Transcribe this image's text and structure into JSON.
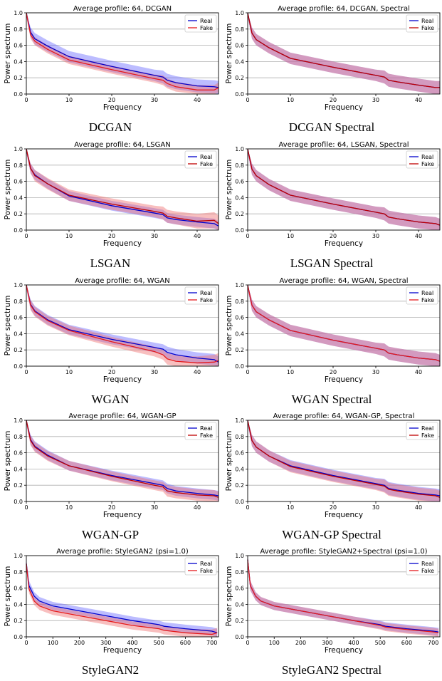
{
  "chart_data": [
    {
      "type": "line",
      "title": "Average profile: 64, DCGAN",
      "caption": "DCGAN",
      "xlabel": "Frequency",
      "ylabel": "Power spectrum",
      "xlim": [
        0,
        45
      ],
      "ylim": [
        0,
        1.0
      ],
      "xticks": [
        "0",
        "10",
        "20",
        "30",
        "40"
      ],
      "yticks": [
        "0.0",
        "0.2",
        "0.4",
        "0.6",
        "0.8",
        "1.0"
      ],
      "grid": "horizontal",
      "legend": "top-right",
      "fake_color": "#e41a1c",
      "x": [
        0,
        1,
        2,
        5,
        10,
        20,
        30,
        32,
        33,
        35,
        40,
        44,
        45
      ],
      "series": [
        {
          "name": "Real",
          "values": [
            1.0,
            0.76,
            0.68,
            0.59,
            0.46,
            0.34,
            0.23,
            0.21,
            0.17,
            0.14,
            0.1,
            0.09,
            0.08
          ],
          "band": [
            0.05,
            0.06,
            0.07,
            0.07,
            0.07,
            0.07,
            0.07,
            0.08,
            0.08,
            0.08,
            0.08,
            0.08
          ]
        },
        {
          "name": "Fake",
          "values": [
            1.0,
            0.73,
            0.65,
            0.55,
            0.42,
            0.3,
            0.19,
            0.17,
            0.13,
            0.09,
            0.05,
            0.05,
            0.08
          ],
          "band": [
            0.05,
            0.05,
            0.05,
            0.05,
            0.05,
            0.05,
            0.05,
            0.06,
            0.06,
            0.06,
            0.06,
            0.06
          ]
        }
      ]
    },
    {
      "type": "line",
      "title": "Average profile: 64, DCGAN, Spectral",
      "caption": "DCGAN Spectral",
      "xlabel": "Frequency",
      "ylabel": "Power spectrum",
      "xlim": [
        0,
        45
      ],
      "ylim": [
        0,
        1.0
      ],
      "xticks": [
        "0",
        "10",
        "20",
        "30",
        "40"
      ],
      "yticks": [
        "0.0",
        "0.2",
        "0.4",
        "0.6",
        "0.8",
        "1.0"
      ],
      "grid": "horizontal",
      "legend": "top-right",
      "fake_color": "#c00000",
      "x": [
        0,
        1,
        2,
        5,
        10,
        20,
        30,
        32,
        33,
        35,
        40,
        44,
        45
      ],
      "series": [
        {
          "name": "Real",
          "values": [
            1.0,
            0.75,
            0.67,
            0.57,
            0.44,
            0.33,
            0.23,
            0.21,
            0.17,
            0.15,
            0.11,
            0.08,
            0.08
          ],
          "band": [
            0.05,
            0.07,
            0.07,
            0.07,
            0.07,
            0.07,
            0.07,
            0.08,
            0.08,
            0.08,
            0.08,
            0.08
          ]
        },
        {
          "name": "Fake",
          "values": [
            1.0,
            0.75,
            0.67,
            0.57,
            0.44,
            0.33,
            0.23,
            0.21,
            0.17,
            0.15,
            0.11,
            0.08,
            0.08
          ],
          "band": [
            0.05,
            0.07,
            0.07,
            0.07,
            0.07,
            0.07,
            0.07,
            0.08,
            0.08,
            0.08,
            0.08,
            0.08
          ]
        }
      ]
    },
    {
      "type": "line",
      "title": "Average profile: 64, LSGAN",
      "caption": "LSGAN",
      "xlabel": "Frequency",
      "ylabel": "Power spectrum",
      "xlim": [
        0,
        45
      ],
      "ylim": [
        0,
        1.0
      ],
      "xticks": [
        "0",
        "10",
        "20",
        "30",
        "40"
      ],
      "yticks": [
        "0.0",
        "0.2",
        "0.4",
        "0.6",
        "0.8",
        "1.0"
      ],
      "grid": "horizontal",
      "legend": "top-right",
      "fake_color": "#c00000",
      "x": [
        0,
        1,
        2,
        5,
        10,
        20,
        30,
        32,
        33,
        35,
        40,
        44,
        45
      ],
      "series": [
        {
          "name": "Real",
          "values": [
            1.0,
            0.76,
            0.68,
            0.57,
            0.42,
            0.3,
            0.21,
            0.19,
            0.15,
            0.13,
            0.1,
            0.08,
            0.05
          ],
          "band": [
            0.05,
            0.06,
            0.06,
            0.06,
            0.06,
            0.06,
            0.06,
            0.06,
            0.06,
            0.06,
            0.06,
            0.06
          ]
        },
        {
          "name": "Fake",
          "values": [
            1.0,
            0.76,
            0.67,
            0.57,
            0.43,
            0.32,
            0.23,
            0.21,
            0.17,
            0.15,
            0.11,
            0.12,
            0.08
          ],
          "band": [
            0.05,
            0.06,
            0.07,
            0.07,
            0.07,
            0.07,
            0.07,
            0.08,
            0.08,
            0.08,
            0.09,
            0.1
          ]
        }
      ]
    },
    {
      "type": "line",
      "title": "Average profile: 64, LSGAN, Spectral",
      "caption": "LSGAN Spectral",
      "xlabel": "Frequency",
      "ylabel": "Power spectrum",
      "xlim": [
        0,
        45
      ],
      "ylim": [
        0,
        1.0
      ],
      "xticks": [
        "0",
        "10",
        "20",
        "30",
        "40"
      ],
      "yticks": [
        "0.0",
        "0.2",
        "0.4",
        "0.6",
        "0.8",
        "1.0"
      ],
      "grid": "horizontal",
      "legend": "top-right",
      "fake_color": "#c00000",
      "x": [
        0,
        1,
        2,
        5,
        10,
        20,
        30,
        32,
        33,
        35,
        40,
        44,
        45
      ],
      "series": [
        {
          "name": "Real",
          "values": [
            1.0,
            0.75,
            0.67,
            0.56,
            0.43,
            0.32,
            0.22,
            0.2,
            0.16,
            0.14,
            0.1,
            0.08,
            0.06
          ],
          "band": [
            0.05,
            0.07,
            0.07,
            0.07,
            0.07,
            0.07,
            0.07,
            0.08,
            0.08,
            0.08,
            0.08,
            0.08
          ]
        },
        {
          "name": "Fake",
          "values": [
            1.0,
            0.75,
            0.67,
            0.56,
            0.43,
            0.32,
            0.22,
            0.2,
            0.16,
            0.14,
            0.1,
            0.08,
            0.06
          ],
          "band": [
            0.05,
            0.07,
            0.07,
            0.07,
            0.07,
            0.07,
            0.07,
            0.08,
            0.08,
            0.08,
            0.08,
            0.08
          ]
        }
      ]
    },
    {
      "type": "line",
      "title": "Average profile: 64, WGAN",
      "caption": "WGAN",
      "xlabel": "Frequency",
      "ylabel": "Power spectrum",
      "xlim": [
        0,
        45
      ],
      "ylim": [
        0,
        1.0
      ],
      "xticks": [
        "0",
        "10",
        "20",
        "30",
        "40"
      ],
      "yticks": [
        "0.0",
        "0.2",
        "0.4",
        "0.6",
        "0.8",
        "1.0"
      ],
      "grid": "horizontal",
      "legend": "top-right",
      "fake_color": "#e41a1c",
      "x": [
        0,
        1,
        2,
        5,
        10,
        20,
        30,
        32,
        33,
        35,
        40,
        44,
        45
      ],
      "series": [
        {
          "name": "Real",
          "values": [
            1.0,
            0.76,
            0.68,
            0.57,
            0.45,
            0.33,
            0.23,
            0.21,
            0.17,
            0.14,
            0.1,
            0.08,
            0.05
          ],
          "band": [
            0.05,
            0.06,
            0.06,
            0.06,
            0.06,
            0.06,
            0.06,
            0.06,
            0.07,
            0.07,
            0.07,
            0.07
          ]
        },
        {
          "name": "Fake",
          "values": [
            1.0,
            0.75,
            0.67,
            0.56,
            0.44,
            0.3,
            0.18,
            0.14,
            0.09,
            0.06,
            0.04,
            0.05,
            0.07
          ],
          "band": [
            0.05,
            0.06,
            0.06,
            0.06,
            0.06,
            0.06,
            0.06,
            0.06,
            0.07,
            0.07,
            0.08,
            0.09
          ]
        }
      ]
    },
    {
      "type": "line",
      "title": "Average profile: 64, WGAN, Spectral",
      "caption": "WGAN Spectral",
      "xlabel": "Frequency",
      "ylabel": "Power spectrum",
      "xlim": [
        0,
        45
      ],
      "ylim": [
        0,
        1.0
      ],
      "xticks": [
        "0",
        "10",
        "20",
        "30",
        "40"
      ],
      "yticks": [
        "0.0",
        "0.2",
        "0.4",
        "0.6",
        "0.8",
        "1.0"
      ],
      "grid": "horizontal",
      "legend": "top-right",
      "fake_color": "#e41a1c",
      "x": [
        0,
        1,
        2,
        5,
        10,
        20,
        30,
        32,
        33,
        35,
        40,
        44,
        45
      ],
      "series": [
        {
          "name": "Real",
          "values": [
            1.0,
            0.75,
            0.67,
            0.57,
            0.44,
            0.32,
            0.22,
            0.2,
            0.16,
            0.14,
            0.1,
            0.08,
            0.06
          ],
          "band": [
            0.05,
            0.07,
            0.07,
            0.07,
            0.07,
            0.07,
            0.07,
            0.08,
            0.08,
            0.08,
            0.08,
            0.08
          ]
        },
        {
          "name": "Fake",
          "values": [
            1.0,
            0.75,
            0.67,
            0.57,
            0.44,
            0.32,
            0.22,
            0.2,
            0.16,
            0.14,
            0.1,
            0.08,
            0.06
          ],
          "band": [
            0.05,
            0.07,
            0.07,
            0.07,
            0.07,
            0.07,
            0.07,
            0.08,
            0.08,
            0.08,
            0.08,
            0.08
          ]
        }
      ]
    },
    {
      "type": "line",
      "title": "Average profile: 64, WGAN-GP",
      "caption": "WGAN-GP",
      "xlabel": "Frequency",
      "ylabel": "Power spectrum",
      "xlim": [
        0,
        45
      ],
      "ylim": [
        0,
        1.0
      ],
      "xticks": [
        "0",
        "10",
        "20",
        "30",
        "40"
      ],
      "yticks": [
        "0.0",
        "0.2",
        "0.4",
        "0.6",
        "0.8",
        "1.0"
      ],
      "grid": "horizontal",
      "legend": "top-right",
      "fake_color": "#c00000",
      "x": [
        0,
        1,
        2,
        5,
        10,
        20,
        30,
        32,
        33,
        35,
        40,
        44,
        45
      ],
      "series": [
        {
          "name": "Real",
          "values": [
            1.0,
            0.76,
            0.68,
            0.57,
            0.44,
            0.32,
            0.22,
            0.2,
            0.16,
            0.13,
            0.1,
            0.08,
            0.07
          ],
          "band": [
            0.05,
            0.06,
            0.06,
            0.06,
            0.06,
            0.06,
            0.06,
            0.06,
            0.06,
            0.06,
            0.06,
            0.06
          ]
        },
        {
          "name": "Fake",
          "values": [
            1.0,
            0.75,
            0.67,
            0.56,
            0.44,
            0.31,
            0.2,
            0.18,
            0.13,
            0.11,
            0.08,
            0.07,
            0.05
          ],
          "band": [
            0.05,
            0.06,
            0.06,
            0.06,
            0.06,
            0.06,
            0.06,
            0.06,
            0.07,
            0.07,
            0.07,
            0.07
          ]
        }
      ]
    },
    {
      "type": "line",
      "title": "Average profile: 64, WGAN-GP, Spectral",
      "caption": "WGAN-GP Spectral",
      "xlabel": "Frequency",
      "ylabel": "Power spectrum",
      "xlim": [
        0,
        45
      ],
      "ylim": [
        0,
        1.0
      ],
      "xticks": [
        "0",
        "10",
        "20",
        "30",
        "40"
      ],
      "yticks": [
        "0.0",
        "0.2",
        "0.4",
        "0.6",
        "0.8",
        "1.0"
      ],
      "grid": "horizontal",
      "legend": "top-right",
      "fake_color": "#c00000",
      "x": [
        0,
        1,
        2,
        5,
        10,
        20,
        30,
        32,
        33,
        35,
        40,
        44,
        45
      ],
      "series": [
        {
          "name": "Real",
          "values": [
            1.0,
            0.75,
            0.67,
            0.56,
            0.44,
            0.32,
            0.22,
            0.2,
            0.16,
            0.14,
            0.1,
            0.08,
            0.07
          ],
          "band": [
            0.05,
            0.07,
            0.07,
            0.07,
            0.07,
            0.07,
            0.07,
            0.08,
            0.08,
            0.08,
            0.08,
            0.08
          ]
        },
        {
          "name": "Fake",
          "values": [
            1.0,
            0.75,
            0.67,
            0.56,
            0.43,
            0.31,
            0.21,
            0.19,
            0.15,
            0.13,
            0.09,
            0.07,
            0.05
          ],
          "band": [
            0.05,
            0.07,
            0.07,
            0.07,
            0.07,
            0.07,
            0.07,
            0.08,
            0.08,
            0.08,
            0.08,
            0.08
          ]
        }
      ]
    },
    {
      "type": "line",
      "title": "Average profile: StyleGAN2 (psi=1.0)",
      "caption": "StyleGAN2",
      "xlabel": "Frequency",
      "ylabel": "Power spectrum",
      "xlim": [
        0,
        725
      ],
      "ylim": [
        0,
        1.0
      ],
      "xticks": [
        "0",
        "100",
        "200",
        "300",
        "400",
        "500",
        "600",
        "700"
      ],
      "yticks": [
        "0.0",
        "0.2",
        "0.4",
        "0.6",
        "0.8",
        "1.0"
      ],
      "grid": "horizontal",
      "legend": "top-right",
      "fake_color": "#e41a1c",
      "x": [
        0,
        10,
        30,
        50,
        100,
        200,
        300,
        400,
        500,
        520,
        600,
        700,
        720
      ],
      "series": [
        {
          "name": "Real",
          "values": [
            0.9,
            0.63,
            0.5,
            0.44,
            0.38,
            0.32,
            0.26,
            0.2,
            0.15,
            0.13,
            0.1,
            0.07,
            0.05
          ],
          "band": [
            0.06,
            0.06,
            0.05,
            0.05,
            0.05,
            0.05,
            0.05,
            0.05,
            0.05,
            0.05,
            0.05,
            0.05
          ]
        },
        {
          "name": "Fake",
          "values": [
            0.9,
            0.59,
            0.44,
            0.38,
            0.32,
            0.26,
            0.2,
            0.14,
            0.1,
            0.08,
            0.05,
            0.03,
            0.05
          ],
          "band": [
            0.06,
            0.05,
            0.05,
            0.05,
            0.05,
            0.05,
            0.05,
            0.05,
            0.05,
            0.05,
            0.05,
            0.06
          ]
        }
      ]
    },
    {
      "type": "line",
      "title": "Average profile: StyleGAN2+Spectral (psi=1.0)",
      "caption": "StyleGAN2 Spectral",
      "xlabel": "Frequency",
      "ylabel": "Power spectrum",
      "xlim": [
        0,
        725
      ],
      "ylim": [
        0,
        1.0
      ],
      "xticks": [
        "0",
        "100",
        "200",
        "300",
        "400",
        "500",
        "600",
        "700"
      ],
      "yticks": [
        "0.0",
        "0.2",
        "0.4",
        "0.6",
        "0.8",
        "1.0"
      ],
      "grid": "horizontal",
      "legend": "top-right",
      "fake_color": "#e41a1c",
      "x": [
        0,
        10,
        30,
        50,
        100,
        200,
        300,
        400,
        500,
        520,
        600,
        700,
        720
      ],
      "series": [
        {
          "name": "Real",
          "values": [
            0.95,
            0.63,
            0.5,
            0.44,
            0.38,
            0.32,
            0.26,
            0.2,
            0.15,
            0.13,
            0.1,
            0.07,
            0.06
          ],
          "band": [
            0.06,
            0.06,
            0.05,
            0.05,
            0.05,
            0.05,
            0.05,
            0.05,
            0.05,
            0.05,
            0.05,
            0.05
          ]
        },
        {
          "name": "Fake",
          "values": [
            0.95,
            0.63,
            0.5,
            0.44,
            0.38,
            0.32,
            0.26,
            0.2,
            0.14,
            0.12,
            0.09,
            0.06,
            0.05
          ],
          "band": [
            0.06,
            0.06,
            0.05,
            0.05,
            0.05,
            0.05,
            0.05,
            0.05,
            0.05,
            0.05,
            0.05,
            0.05
          ]
        }
      ]
    }
  ],
  "colors": {
    "real": "#0000cc",
    "real_band": "#6b6bff",
    "axis": "#000000",
    "grid": "#b0b0b0"
  }
}
